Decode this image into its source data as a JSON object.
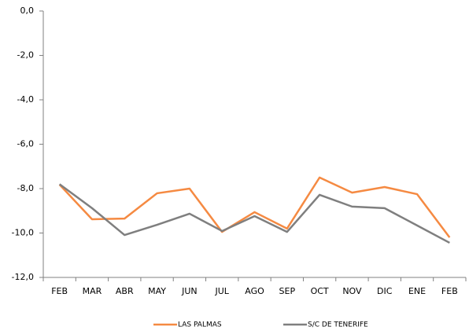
{
  "chart_data": {
    "type": "line",
    "categories": [
      "FEB",
      "MAR",
      "ABR",
      "MAY",
      "JUN",
      "JUL",
      "AGO",
      "SEP",
      "OCT",
      "NOV",
      "DIC",
      "ENE",
      "FEB"
    ],
    "series": [
      {
        "name": "LAS PALMAS",
        "color": "#f58a42",
        "values": [
          -7.82,
          -9.38,
          -9.35,
          -8.21,
          -8.0,
          -9.95,
          -9.06,
          -9.8,
          -7.5,
          -8.18,
          -7.93,
          -8.25,
          -10.2
        ]
      },
      {
        "name": "S/C DE TENERIFE",
        "color": "#7f7f7f",
        "values": [
          -7.8,
          -8.88,
          -10.09,
          -9.63,
          -9.13,
          -9.91,
          -9.24,
          -9.95,
          -8.28,
          -8.81,
          -8.88,
          -9.66,
          -10.44
        ]
      }
    ],
    "ylim": [
      -12,
      0
    ],
    "yticks": [
      {
        "value": 0,
        "label": "0,0"
      },
      {
        "value": -2,
        "label": "-2,0"
      },
      {
        "value": -4,
        "label": "-4,0"
      },
      {
        "value": -6,
        "label": "-6,0"
      },
      {
        "value": -8,
        "label": "-8,0"
      },
      {
        "value": -10,
        "label": "-10,0"
      },
      {
        "value": -12,
        "label": "-12,0"
      }
    ],
    "grid": false,
    "legend": "bottom"
  }
}
